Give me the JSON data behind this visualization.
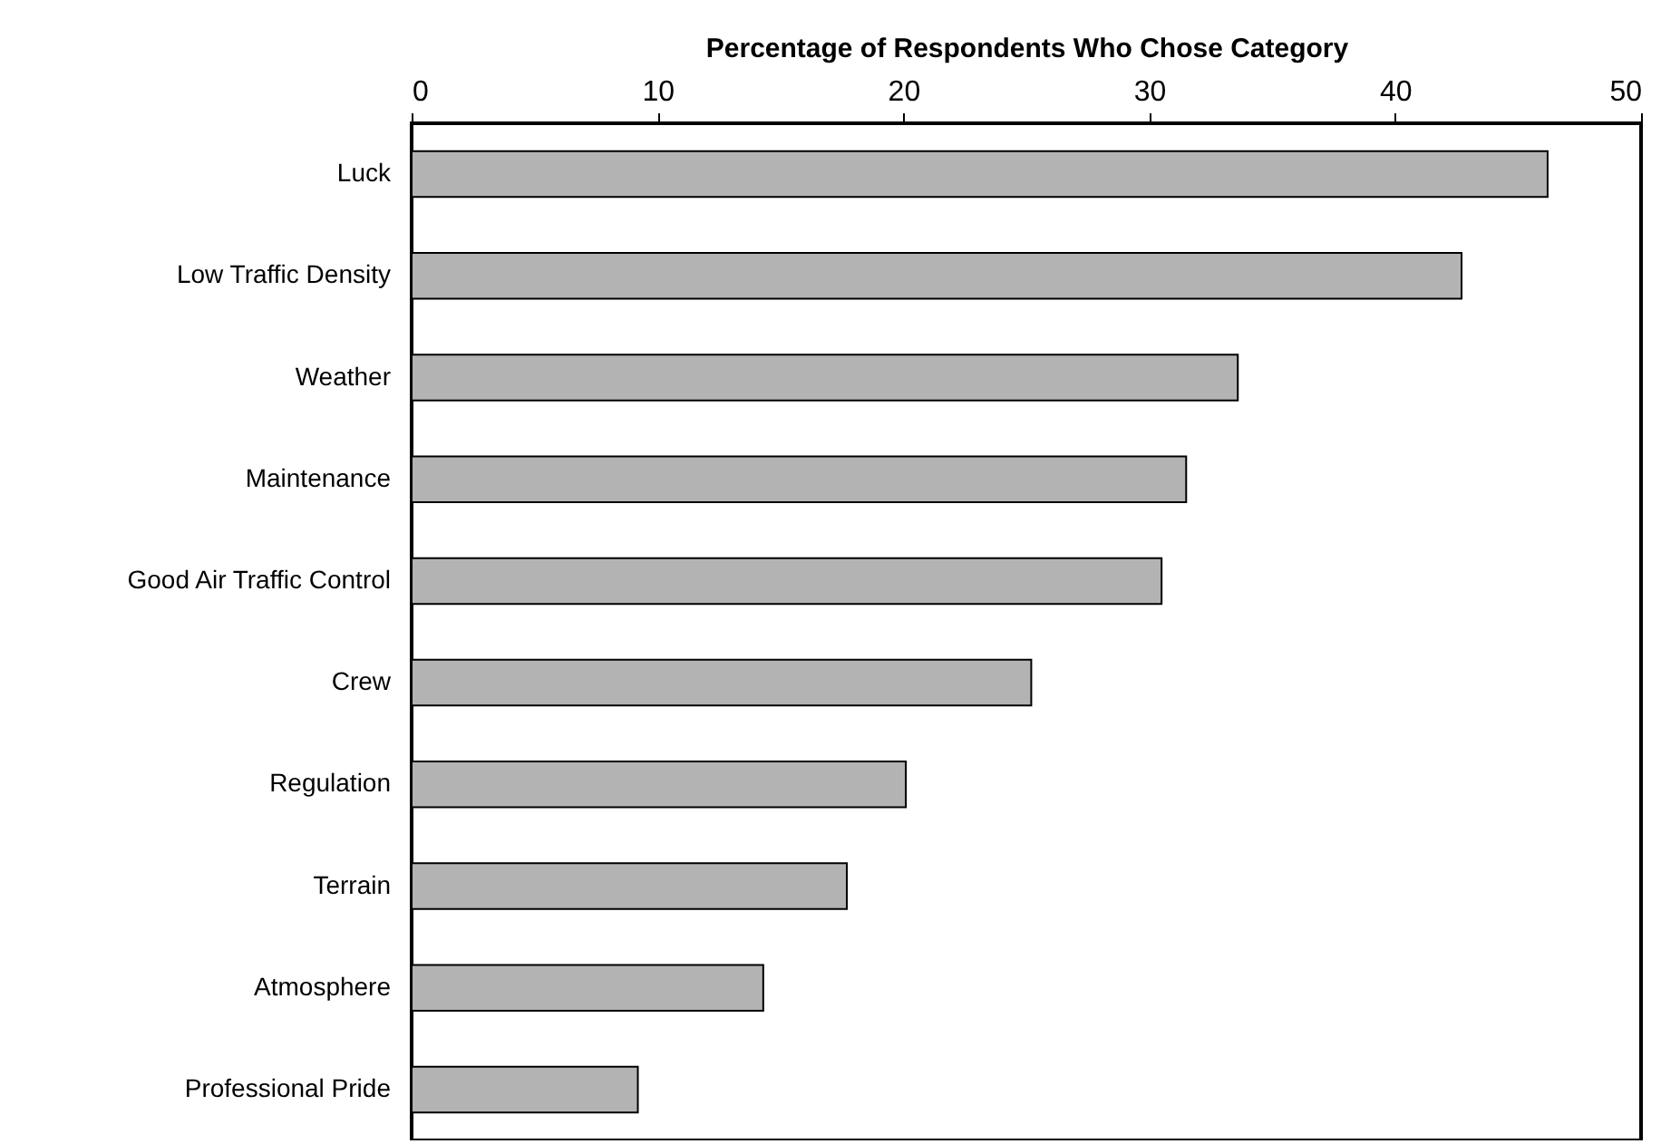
{
  "chart_data": {
    "type": "bar",
    "orientation": "horizontal",
    "xlabel": "Percentage of Respondents Who Chose Category",
    "categories": [
      "Luck",
      "Low Traffic Density",
      "Weather",
      "Maintenance",
      "Good Air Traffic Control",
      "Crew",
      "Regulation",
      "Terrain",
      "Atmosphere",
      "Professional Pride"
    ],
    "values": [
      46.2,
      42.7,
      33.6,
      31.5,
      30.5,
      25.2,
      20.1,
      17.7,
      14.3,
      9.2
    ],
    "color": "#b3b3b3",
    "xlim": [
      0,
      50
    ],
    "xticks": [
      0,
      10,
      20,
      30,
      40,
      50
    ],
    "grid": false
  }
}
